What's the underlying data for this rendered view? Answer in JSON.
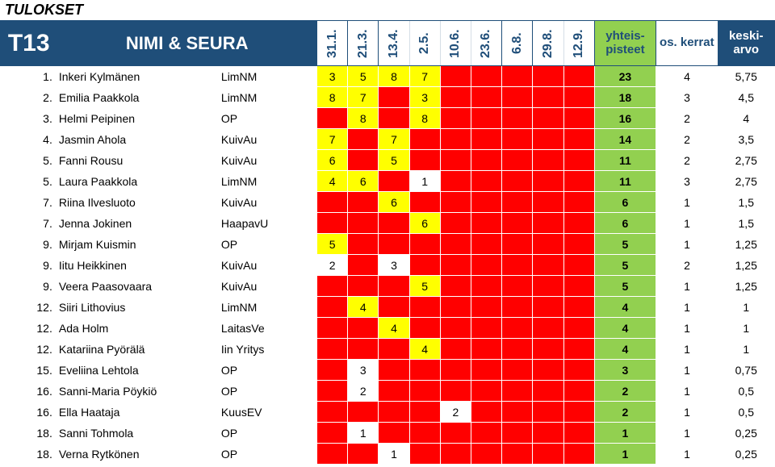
{
  "title": "TULOKSET",
  "header": {
    "code": "T13",
    "name_club": "NIMI & SEURA",
    "dates": [
      "31.1.",
      "21.3.",
      "13.4.",
      "2.5.",
      "10.6.",
      "23.6.",
      "6.8.",
      "29.8.",
      "12.9."
    ],
    "total": "yhteis-\npisteet",
    "occur": "os.\nkerrat",
    "avg": "keski-\narvo"
  },
  "colors": {
    "red": "#ff0000",
    "yellow": "#ffff00",
    "white": "#ffffff",
    "green": "#92d050",
    "navy": "#1f4e79"
  },
  "col_widths": {
    "rank": 34,
    "name": 200,
    "club": 120,
    "date": 38,
    "total": 76,
    "occur": 76,
    "avg": 70
  },
  "rows": [
    {
      "rk": "1.",
      "name": "Inkeri Kylmänen",
      "club": "LimNM",
      "d": [
        {
          "v": "3",
          "c": "yel"
        },
        {
          "v": "5",
          "c": "yel"
        },
        {
          "v": "8",
          "c": "yel"
        },
        {
          "v": "7",
          "c": "yel"
        },
        {
          "v": "",
          "c": "red"
        },
        {
          "v": "",
          "c": "red"
        },
        {
          "v": "",
          "c": "red"
        },
        {
          "v": "",
          "c": "red"
        },
        {
          "v": "",
          "c": "red"
        }
      ],
      "tot": "23",
      "occ": "4",
      "avg": "5,75"
    },
    {
      "rk": "2.",
      "name": "Emilia Paakkola",
      "club": "LimNM",
      "d": [
        {
          "v": "8",
          "c": "yel"
        },
        {
          "v": "7",
          "c": "yel"
        },
        {
          "v": "",
          "c": "red"
        },
        {
          "v": "3",
          "c": "yel"
        },
        {
          "v": "",
          "c": "red"
        },
        {
          "v": "",
          "c": "red"
        },
        {
          "v": "",
          "c": "red"
        },
        {
          "v": "",
          "c": "red"
        },
        {
          "v": "",
          "c": "red"
        }
      ],
      "tot": "18",
      "occ": "3",
      "avg": "4,5"
    },
    {
      "rk": "3.",
      "name": "Helmi Peipinen",
      "club": "OP",
      "d": [
        {
          "v": "",
          "c": "red"
        },
        {
          "v": "8",
          "c": "yel"
        },
        {
          "v": "",
          "c": "red"
        },
        {
          "v": "8",
          "c": "yel"
        },
        {
          "v": "",
          "c": "red"
        },
        {
          "v": "",
          "c": "red"
        },
        {
          "v": "",
          "c": "red"
        },
        {
          "v": "",
          "c": "red"
        },
        {
          "v": "",
          "c": "red"
        }
      ],
      "tot": "16",
      "occ": "2",
      "avg": "4"
    },
    {
      "rk": "4.",
      "name": "Jasmin Ahola",
      "club": "KuivAu",
      "d": [
        {
          "v": "7",
          "c": "yel"
        },
        {
          "v": "",
          "c": "red"
        },
        {
          "v": "7",
          "c": "yel"
        },
        {
          "v": "",
          "c": "red"
        },
        {
          "v": "",
          "c": "red"
        },
        {
          "v": "",
          "c": "red"
        },
        {
          "v": "",
          "c": "red"
        },
        {
          "v": "",
          "c": "red"
        },
        {
          "v": "",
          "c": "red"
        }
      ],
      "tot": "14",
      "occ": "2",
      "avg": "3,5"
    },
    {
      "rk": "5.",
      "name": "Fanni Rousu",
      "club": "KuivAu",
      "d": [
        {
          "v": "6",
          "c": "yel"
        },
        {
          "v": "",
          "c": "red"
        },
        {
          "v": "5",
          "c": "yel"
        },
        {
          "v": "",
          "c": "red"
        },
        {
          "v": "",
          "c": "red"
        },
        {
          "v": "",
          "c": "red"
        },
        {
          "v": "",
          "c": "red"
        },
        {
          "v": "",
          "c": "red"
        },
        {
          "v": "",
          "c": "red"
        }
      ],
      "tot": "11",
      "occ": "2",
      "avg": "2,75"
    },
    {
      "rk": "5.",
      "name": "Laura Paakkola",
      "club": "LimNM",
      "d": [
        {
          "v": "4",
          "c": "yel"
        },
        {
          "v": "6",
          "c": "yel"
        },
        {
          "v": "",
          "c": "red"
        },
        {
          "v": "1",
          "c": "whi"
        },
        {
          "v": "",
          "c": "red"
        },
        {
          "v": "",
          "c": "red"
        },
        {
          "v": "",
          "c": "red"
        },
        {
          "v": "",
          "c": "red"
        },
        {
          "v": "",
          "c": "red"
        }
      ],
      "tot": "11",
      "occ": "3",
      "avg": "2,75"
    },
    {
      "rk": "7.",
      "name": "Riina Ilvesluoto",
      "club": "KuivAu",
      "d": [
        {
          "v": "",
          "c": "red"
        },
        {
          "v": "",
          "c": "red"
        },
        {
          "v": "6",
          "c": "yel"
        },
        {
          "v": "",
          "c": "red"
        },
        {
          "v": "",
          "c": "red"
        },
        {
          "v": "",
          "c": "red"
        },
        {
          "v": "",
          "c": "red"
        },
        {
          "v": "",
          "c": "red"
        },
        {
          "v": "",
          "c": "red"
        }
      ],
      "tot": "6",
      "occ": "1",
      "avg": "1,5"
    },
    {
      "rk": "7.",
      "name": "Jenna Jokinen",
      "club": "HaapavU",
      "d": [
        {
          "v": "",
          "c": "red"
        },
        {
          "v": "",
          "c": "red"
        },
        {
          "v": "",
          "c": "red"
        },
        {
          "v": "6",
          "c": "yel"
        },
        {
          "v": "",
          "c": "red"
        },
        {
          "v": "",
          "c": "red"
        },
        {
          "v": "",
          "c": "red"
        },
        {
          "v": "",
          "c": "red"
        },
        {
          "v": "",
          "c": "red"
        }
      ],
      "tot": "6",
      "occ": "1",
      "avg": "1,5"
    },
    {
      "rk": "9.",
      "name": "Mirjam Kuismin",
      "club": "OP",
      "d": [
        {
          "v": "5",
          "c": "yel"
        },
        {
          "v": "",
          "c": "red"
        },
        {
          "v": "",
          "c": "red"
        },
        {
          "v": "",
          "c": "red"
        },
        {
          "v": "",
          "c": "red"
        },
        {
          "v": "",
          "c": "red"
        },
        {
          "v": "",
          "c": "red"
        },
        {
          "v": "",
          "c": "red"
        },
        {
          "v": "",
          "c": "red"
        }
      ],
      "tot": "5",
      "occ": "1",
      "avg": "1,25"
    },
    {
      "rk": "9.",
      "name": "Iitu Heikkinen",
      "club": "KuivAu",
      "d": [
        {
          "v": "2",
          "c": "whi"
        },
        {
          "v": "",
          "c": "red"
        },
        {
          "v": "3",
          "c": "whi"
        },
        {
          "v": "",
          "c": "red"
        },
        {
          "v": "",
          "c": "red"
        },
        {
          "v": "",
          "c": "red"
        },
        {
          "v": "",
          "c": "red"
        },
        {
          "v": "",
          "c": "red"
        },
        {
          "v": "",
          "c": "red"
        }
      ],
      "tot": "5",
      "occ": "2",
      "avg": "1,25"
    },
    {
      "rk": "9.",
      "name": "Veera Paasovaara",
      "club": "KuivAu",
      "d": [
        {
          "v": "",
          "c": "red"
        },
        {
          "v": "",
          "c": "red"
        },
        {
          "v": "",
          "c": "red"
        },
        {
          "v": "5",
          "c": "yel"
        },
        {
          "v": "",
          "c": "red"
        },
        {
          "v": "",
          "c": "red"
        },
        {
          "v": "",
          "c": "red"
        },
        {
          "v": "",
          "c": "red"
        },
        {
          "v": "",
          "c": "red"
        }
      ],
      "tot": "5",
      "occ": "1",
      "avg": "1,25"
    },
    {
      "rk": "12.",
      "name": "Siiri Lithovius",
      "club": "LimNM",
      "d": [
        {
          "v": "",
          "c": "red"
        },
        {
          "v": "4",
          "c": "yel"
        },
        {
          "v": "",
          "c": "red"
        },
        {
          "v": "",
          "c": "red"
        },
        {
          "v": "",
          "c": "red"
        },
        {
          "v": "",
          "c": "red"
        },
        {
          "v": "",
          "c": "red"
        },
        {
          "v": "",
          "c": "red"
        },
        {
          "v": "",
          "c": "red"
        }
      ],
      "tot": "4",
      "occ": "1",
      "avg": "1"
    },
    {
      "rk": "12.",
      "name": "Ada Holm",
      "club": "LaitasVe",
      "d": [
        {
          "v": "",
          "c": "red"
        },
        {
          "v": "",
          "c": "red"
        },
        {
          "v": "4",
          "c": "yel"
        },
        {
          "v": "",
          "c": "red"
        },
        {
          "v": "",
          "c": "red"
        },
        {
          "v": "",
          "c": "red"
        },
        {
          "v": "",
          "c": "red"
        },
        {
          "v": "",
          "c": "red"
        },
        {
          "v": "",
          "c": "red"
        }
      ],
      "tot": "4",
      "occ": "1",
      "avg": "1"
    },
    {
      "rk": "12.",
      "name": "Katariina Pyörälä",
      "club": "Iin Yritys",
      "d": [
        {
          "v": "",
          "c": "red"
        },
        {
          "v": "",
          "c": "red"
        },
        {
          "v": "",
          "c": "red"
        },
        {
          "v": "4",
          "c": "yel"
        },
        {
          "v": "",
          "c": "red"
        },
        {
          "v": "",
          "c": "red"
        },
        {
          "v": "",
          "c": "red"
        },
        {
          "v": "",
          "c": "red"
        },
        {
          "v": "",
          "c": "red"
        }
      ],
      "tot": "4",
      "occ": "1",
      "avg": "1"
    },
    {
      "rk": "15.",
      "name": "Eveliina Lehtola",
      "club": "OP",
      "d": [
        {
          "v": "",
          "c": "red"
        },
        {
          "v": "3",
          "c": "whi"
        },
        {
          "v": "",
          "c": "red"
        },
        {
          "v": "",
          "c": "red"
        },
        {
          "v": "",
          "c": "red"
        },
        {
          "v": "",
          "c": "red"
        },
        {
          "v": "",
          "c": "red"
        },
        {
          "v": "",
          "c": "red"
        },
        {
          "v": "",
          "c": "red"
        }
      ],
      "tot": "3",
      "occ": "1",
      "avg": "0,75"
    },
    {
      "rk": "16.",
      "name": "Sanni-Maria Pöykiö",
      "club": "OP",
      "d": [
        {
          "v": "",
          "c": "red"
        },
        {
          "v": "2",
          "c": "whi"
        },
        {
          "v": "",
          "c": "red"
        },
        {
          "v": "",
          "c": "red"
        },
        {
          "v": "",
          "c": "red"
        },
        {
          "v": "",
          "c": "red"
        },
        {
          "v": "",
          "c": "red"
        },
        {
          "v": "",
          "c": "red"
        },
        {
          "v": "",
          "c": "red"
        }
      ],
      "tot": "2",
      "occ": "1",
      "avg": "0,5"
    },
    {
      "rk": "16.",
      "name": "Ella Haataja",
      "club": "KuusEV",
      "d": [
        {
          "v": "",
          "c": "red"
        },
        {
          "v": "",
          "c": "red"
        },
        {
          "v": "",
          "c": "red"
        },
        {
          "v": "",
          "c": "red"
        },
        {
          "v": "2",
          "c": "whi"
        },
        {
          "v": "",
          "c": "red"
        },
        {
          "v": "",
          "c": "red"
        },
        {
          "v": "",
          "c": "red"
        },
        {
          "v": "",
          "c": "red"
        }
      ],
      "tot": "2",
      "occ": "1",
      "avg": "0,5"
    },
    {
      "rk": "18.",
      "name": "Sanni Tohmola",
      "club": "OP",
      "d": [
        {
          "v": "",
          "c": "red"
        },
        {
          "v": "1",
          "c": "whi"
        },
        {
          "v": "",
          "c": "red"
        },
        {
          "v": "",
          "c": "red"
        },
        {
          "v": "",
          "c": "red"
        },
        {
          "v": "",
          "c": "red"
        },
        {
          "v": "",
          "c": "red"
        },
        {
          "v": "",
          "c": "red"
        },
        {
          "v": "",
          "c": "red"
        }
      ],
      "tot": "1",
      "occ": "1",
      "avg": "0,25"
    },
    {
      "rk": "18.",
      "name": "Verna Rytkönen",
      "club": "OP",
      "d": [
        {
          "v": "",
          "c": "red"
        },
        {
          "v": "",
          "c": "red"
        },
        {
          "v": "1",
          "c": "whi"
        },
        {
          "v": "",
          "c": "red"
        },
        {
          "v": "",
          "c": "red"
        },
        {
          "v": "",
          "c": "red"
        },
        {
          "v": "",
          "c": "red"
        },
        {
          "v": "",
          "c": "red"
        },
        {
          "v": "",
          "c": "red"
        }
      ],
      "tot": "1",
      "occ": "1",
      "avg": "0,25"
    }
  ]
}
